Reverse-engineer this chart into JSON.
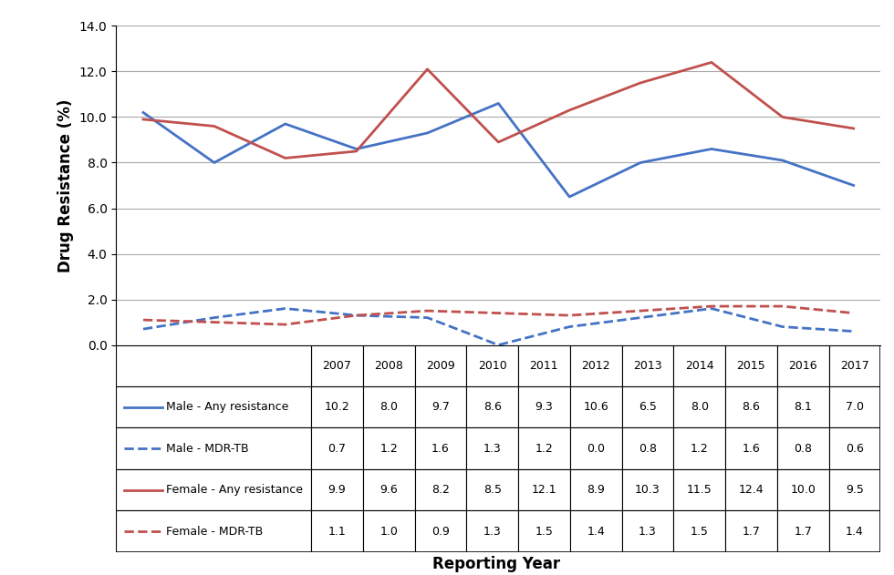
{
  "years": [
    2007,
    2008,
    2009,
    2010,
    2011,
    2012,
    2013,
    2014,
    2015,
    2016,
    2017
  ],
  "male_any": [
    10.2,
    8.0,
    9.7,
    8.6,
    9.3,
    10.6,
    6.5,
    8.0,
    8.6,
    8.1,
    7.0
  ],
  "male_mdr": [
    0.7,
    1.2,
    1.6,
    1.3,
    1.2,
    0.0,
    0.8,
    1.2,
    1.6,
    0.8,
    0.6
  ],
  "female_any": [
    9.9,
    9.6,
    8.2,
    8.5,
    12.1,
    8.9,
    10.3,
    11.5,
    12.4,
    10.0,
    9.5
  ],
  "female_mdr": [
    1.1,
    1.0,
    0.9,
    1.3,
    1.5,
    1.4,
    1.3,
    1.5,
    1.7,
    1.7,
    1.4
  ],
  "male_color": "#4472C4",
  "female_color": "#C0504D",
  "ylim": [
    0.0,
    14.0
  ],
  "yticks": [
    0.0,
    2.0,
    4.0,
    6.0,
    8.0,
    10.0,
    12.0,
    14.0
  ],
  "ylabel": "Drug Resistance (%)",
  "xlabel": "Reporting Year",
  "row_labels": [
    "Male - Any resistance",
    "Male - MDR-TB",
    "Female - Any resistance",
    "Female - MDR-TB"
  ],
  "row_styles": [
    [
      "#4472C4",
      "-"
    ],
    [
      "#4472C4",
      "--"
    ],
    [
      "#C0504D",
      "-"
    ],
    [
      "#C0504D",
      "--"
    ]
  ],
  "table_data": [
    [
      "10.2",
      "8.0",
      "9.7",
      "8.6",
      "9.3",
      "10.6",
      "6.5",
      "8.0",
      "8.6",
      "8.1",
      "7.0"
    ],
    [
      "0.7",
      "1.2",
      "1.6",
      "1.3",
      "1.2",
      "0.0",
      "0.8",
      "1.2",
      "1.6",
      "0.8",
      "0.6"
    ],
    [
      "9.9",
      "9.6",
      "8.2",
      "8.5",
      "12.1",
      "8.9",
      "10.3",
      "11.5",
      "12.4",
      "10.0",
      "9.5"
    ],
    [
      "1.1",
      "1.0",
      "0.9",
      "1.3",
      "1.5",
      "1.4",
      "1.3",
      "1.5",
      "1.7",
      "1.7",
      "1.4"
    ]
  ],
  "col_labels": [
    "2007",
    "2008",
    "2009",
    "2010",
    "2011",
    "2012",
    "2013",
    "2014",
    "2015",
    "2016",
    "2017"
  ]
}
